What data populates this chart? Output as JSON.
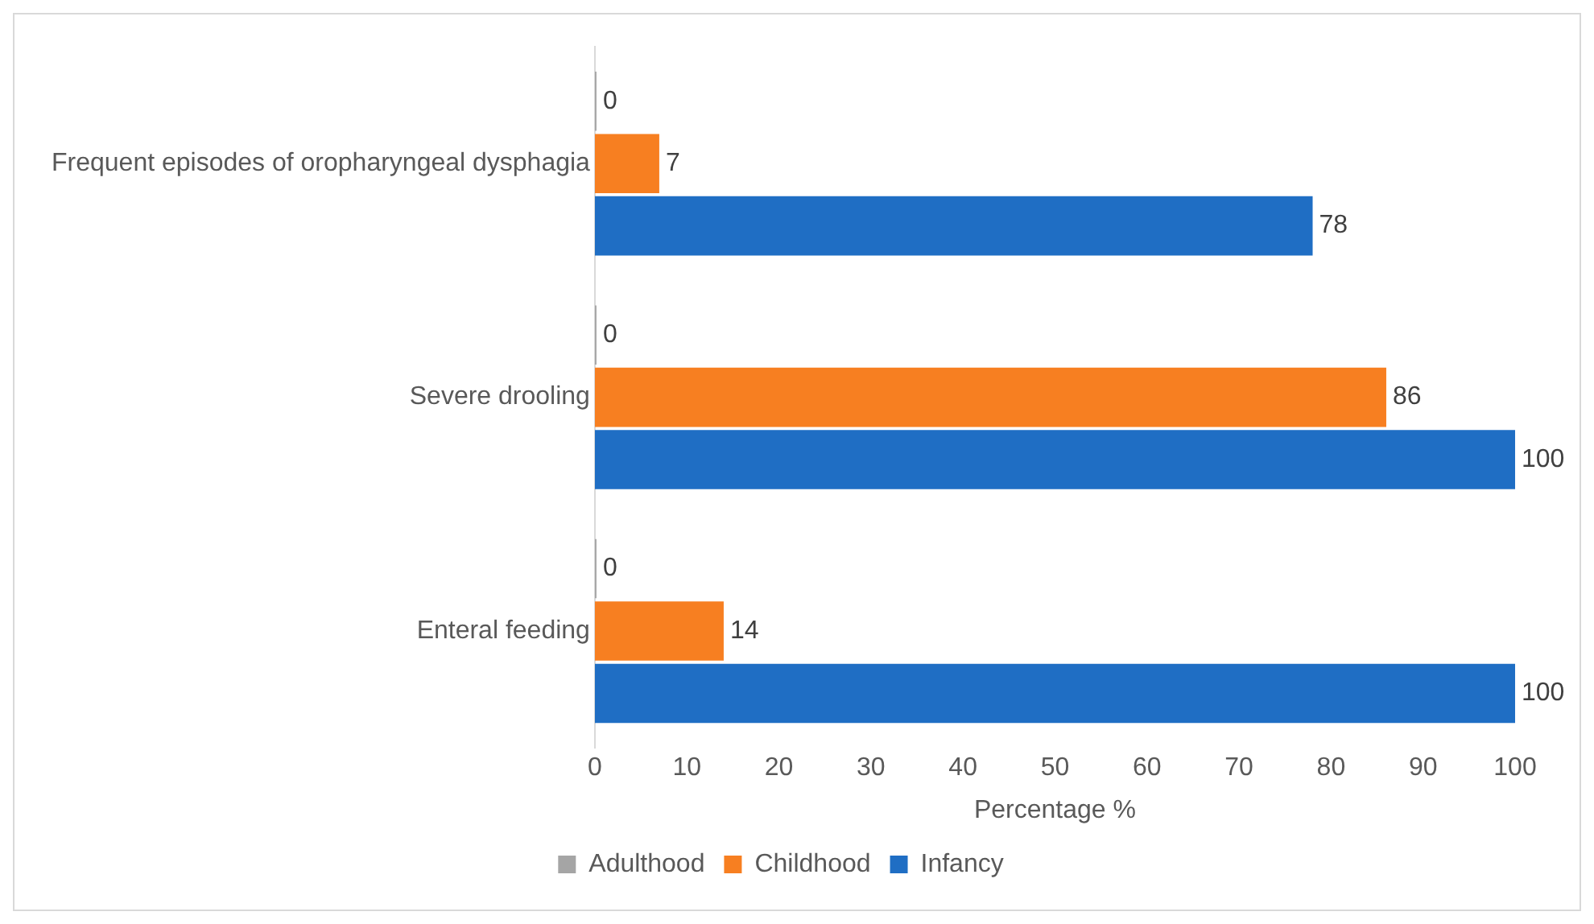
{
  "chart_data": {
    "type": "bar",
    "orientation": "horizontal",
    "categories": [
      "Frequent episodes of oropharyngeal dysphagia",
      "Severe drooling",
      "Enteral feeding"
    ],
    "series": [
      {
        "name": "Adulthood",
        "color": "#a5a5a5",
        "values": [
          0,
          0,
          0
        ]
      },
      {
        "name": "Childhood",
        "color": "#f77f21",
        "values": [
          7,
          86,
          14
        ]
      },
      {
        "name": "Infancy",
        "color": "#1f6ec4",
        "values": [
          78,
          100,
          100
        ]
      }
    ],
    "xlabel": "Percentage %",
    "xlim": [
      0,
      100
    ],
    "xticks": [
      0,
      10,
      20,
      30,
      40,
      50,
      60,
      70,
      80,
      90,
      100
    ],
    "grid": false,
    "legend": "bottom",
    "data_labels": true
  }
}
